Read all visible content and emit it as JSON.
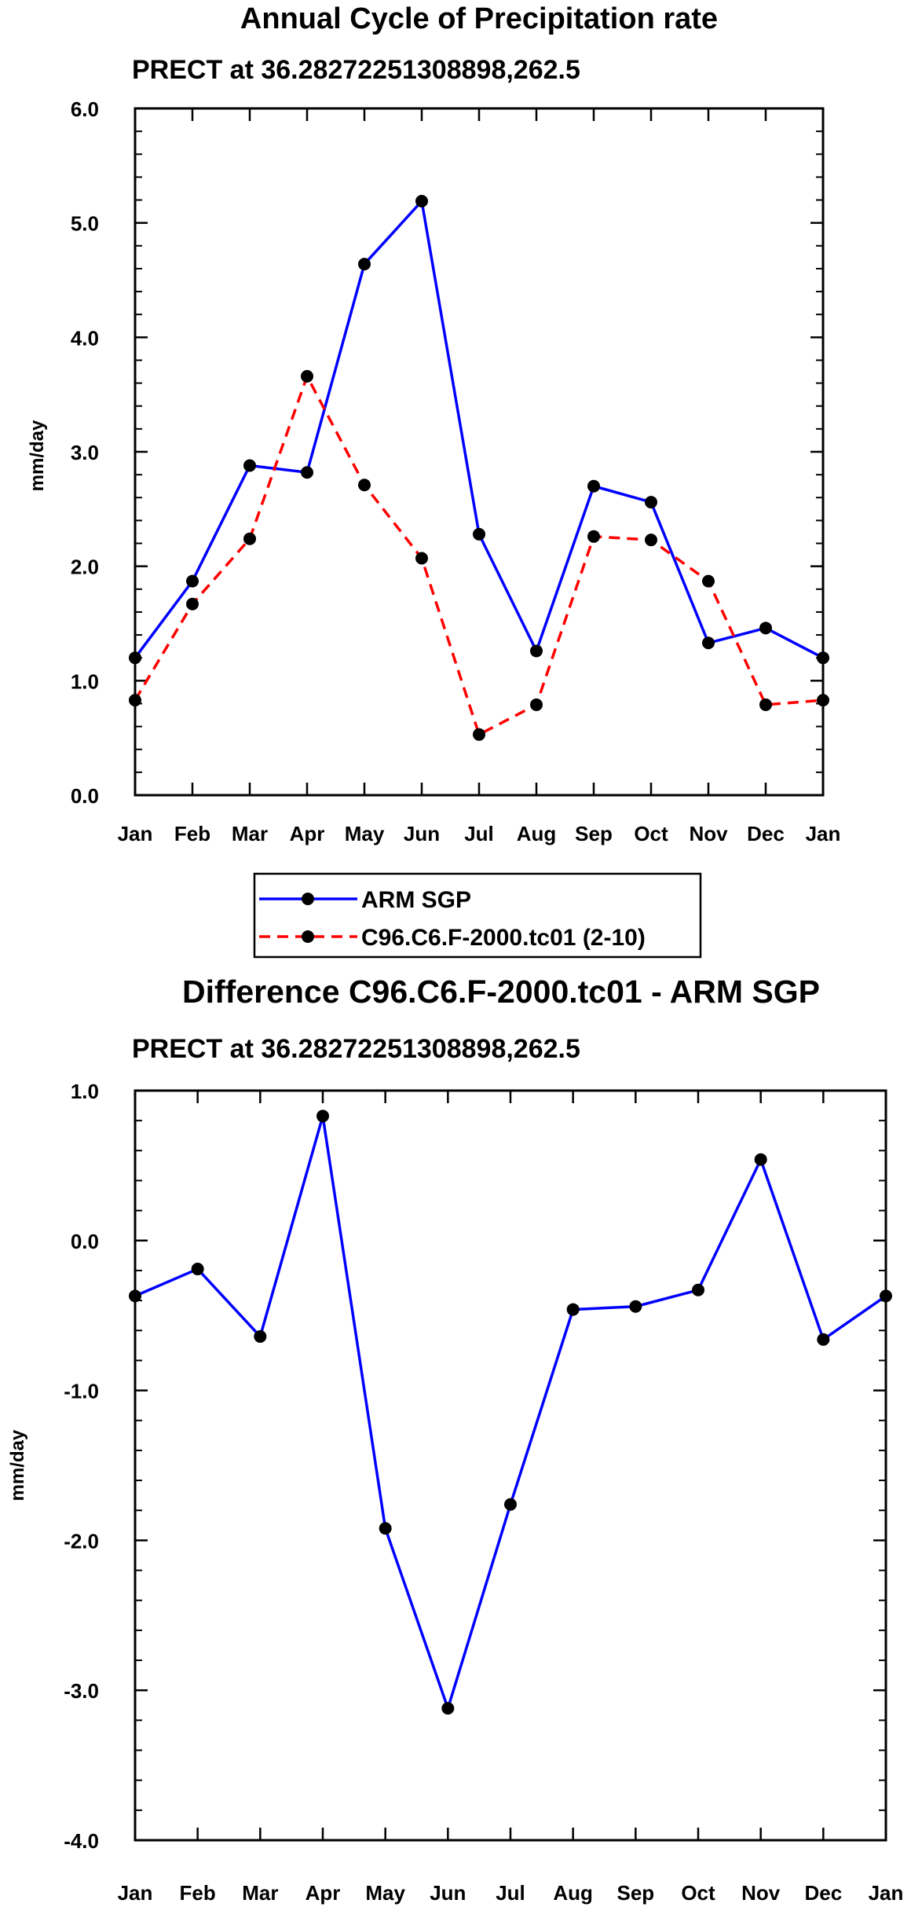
{
  "chart_data": [
    {
      "type": "line",
      "title": "Annual Cycle of Precipitation rate",
      "subtitle": "PRECT at 36.28272251308898,262.5",
      "ylabel": "mm/day",
      "ylim": [
        0,
        6
      ],
      "yticks": [
        "0.0",
        "1.0",
        "2.0",
        "3.0",
        "4.0",
        "5.0",
        "6.0"
      ],
      "categories": [
        "Jan",
        "Feb",
        "Mar",
        "Apr",
        "May",
        "Jun",
        "Jul",
        "Aug",
        "Sep",
        "Oct",
        "Nov",
        "Dec",
        "Jan"
      ],
      "series": [
        {
          "name": "ARM SGP",
          "color": "#0000ff",
          "dash": "solid",
          "values": [
            1.2,
            1.87,
            2.88,
            2.82,
            4.64,
            5.19,
            2.28,
            1.26,
            2.7,
            2.56,
            1.33,
            1.46,
            1.2
          ]
        },
        {
          "name": "C96.C6.F-2000.tc01 (2-10)",
          "color": "#ff0000",
          "dash": "dashed",
          "values": [
            0.83,
            1.67,
            2.24,
            3.66,
            2.71,
            2.07,
            0.53,
            0.79,
            2.26,
            2.23,
            1.87,
            0.79,
            0.83
          ]
        }
      ],
      "legend_position": "below"
    },
    {
      "type": "line",
      "title": "Difference C96.C6.F-2000.tc01 - ARM SGP",
      "subtitle": "PRECT at 36.28272251308898,262.5",
      "ylabel": "mm/day",
      "ylim": [
        -4,
        1
      ],
      "yticks": [
        "-4.0",
        "-3.0",
        "-2.0",
        "-1.0",
        "0.0",
        "1.0"
      ],
      "categories": [
        "Jan",
        "Feb",
        "Mar",
        "Apr",
        "May",
        "Jun",
        "Jul",
        "Aug",
        "Sep",
        "Oct",
        "Nov",
        "Dec",
        "Jan"
      ],
      "series": [
        {
          "name": "Difference",
          "color": "#0000ff",
          "dash": "solid",
          "values": [
            -0.37,
            -0.19,
            -0.64,
            0.83,
            -1.92,
            -3.12,
            -1.76,
            -0.46,
            -0.44,
            -0.33,
            0.54,
            -0.66,
            -0.37
          ]
        }
      ]
    }
  ]
}
